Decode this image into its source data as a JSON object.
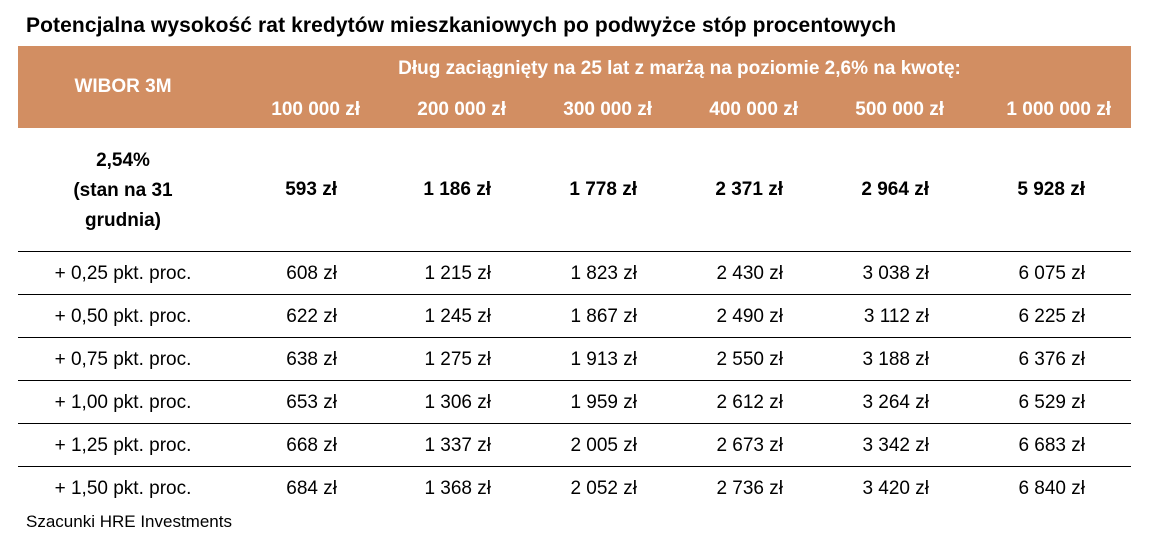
{
  "title": "Potencjalna wysokość rat kredytów mieszkaniowych po podwyżce stóp procentowych",
  "header": {
    "wibor_label": "WIBOR 3M",
    "span_label": "Dług zaciągnięty na 25 lat z marżą na poziomie 2,6% na kwotę:",
    "amounts": [
      "100 000 zł",
      "200 000 zł",
      "300 000 zł",
      "400 000 zł",
      "500 000 zł",
      "1 000 000 zł"
    ]
  },
  "first_row": {
    "label_lines": [
      "2,54%",
      "(stan na 31",
      "grudnia)"
    ],
    "values": [
      "593 zł",
      "1 186 zł",
      "1 778 zł",
      "2 371 zł",
      "2 964 zł",
      "5 928 zł"
    ]
  },
  "rows": [
    {
      "label": "+ 0,25 pkt. proc.",
      "values": [
        "608 zł",
        "1 215 zł",
        "1 823 zł",
        "2 430 zł",
        "3 038 zł",
        "6 075 zł"
      ]
    },
    {
      "label": "+ 0,50 pkt. proc.",
      "values": [
        "622 zł",
        "1 245 zł",
        "1 867 zł",
        "2 490 zł",
        "3 112 zł",
        "6 225 zł"
      ]
    },
    {
      "label": "+ 0,75 pkt. proc.",
      "values": [
        "638 zł",
        "1 275 zł",
        "1 913 zł",
        "2 550 zł",
        "3 188 zł",
        "6 376 zł"
      ]
    },
    {
      "label": "+ 1,00 pkt. proc.",
      "values": [
        "653 zł",
        "1 306 zł",
        "1 959 zł",
        "2 612 zł",
        "3 264 zł",
        "6 529 zł"
      ]
    },
    {
      "label": "+ 1,25 pkt. proc.",
      "values": [
        "668 zł",
        "1 337 zł",
        "2 005 zł",
        "2 673 zł",
        "3 342 zł",
        "6 683 zł"
      ]
    },
    {
      "label": "+ 1,50 pkt. proc.",
      "values": [
        "684 zł",
        "1 368 zł",
        "2 052 zł",
        "2 736 zł",
        "3 420 zł",
        "6 840 zł"
      ]
    }
  ],
  "footer": "Szacunki HRE Investments",
  "colors": {
    "header_bg": "#D28E62",
    "header_text": "#ffffff"
  }
}
